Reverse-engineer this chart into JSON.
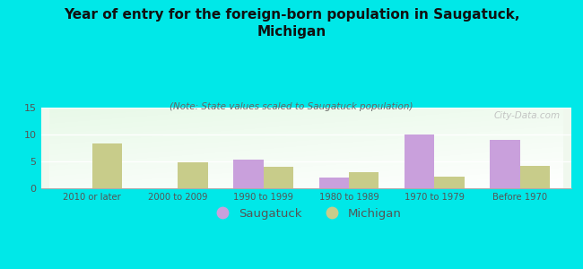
{
  "title": "Year of entry for the foreign-born population in Saugatuck,\nMichigan",
  "subtitle": "(Note: State values scaled to Saugatuck population)",
  "categories": [
    "2010 or later",
    "2000 to 2009",
    "1990 to 1999",
    "1980 to 1989",
    "1970 to 1979",
    "Before 1970"
  ],
  "saugatuck_values": [
    0,
    0,
    5.3,
    2.0,
    10.0,
    9.0
  ],
  "michigan_values": [
    8.4,
    4.8,
    4.0,
    3.0,
    2.1,
    4.2
  ],
  "saugatuck_color": "#c9a0dc",
  "michigan_color": "#c8cc8a",
  "background_color": "#00e8e8",
  "ylim": [
    0,
    15
  ],
  "yticks": [
    0,
    5,
    10,
    15
  ],
  "watermark": "City-Data.com",
  "bar_width": 0.35,
  "legend_labels": [
    "Saugatuck",
    "Michigan"
  ]
}
